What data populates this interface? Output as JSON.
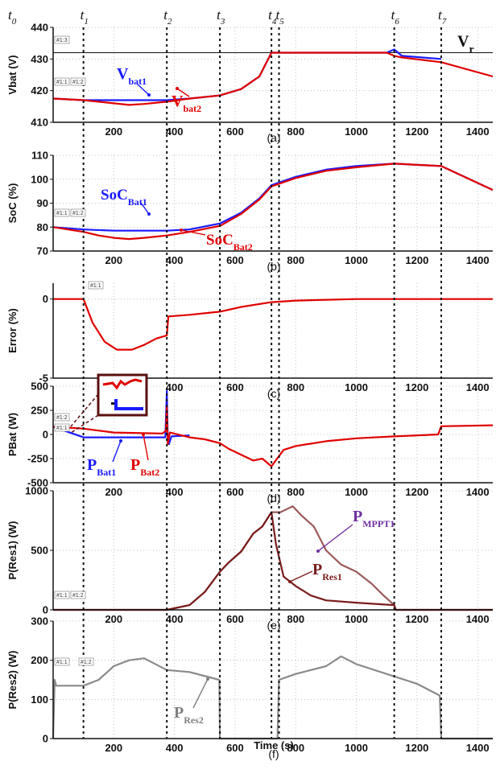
{
  "chart_data": {
    "type": "line",
    "x_axis": {
      "label": "Time (s)",
      "range": [
        0,
        1450
      ],
      "ticks": [
        200,
        400,
        600,
        800,
        1000,
        1200,
        1400
      ]
    },
    "time_instants": [
      {
        "name": "t",
        "sub": "0",
        "x": 0
      },
      {
        "name": "t",
        "sub": "1",
        "x": 100
      },
      {
        "name": "t",
        "sub": "2",
        "x": 375
      },
      {
        "name": "t",
        "sub": "3",
        "x": 550
      },
      {
        "name": "t",
        "sub": "4",
        "x": 720
      },
      {
        "name": "t",
        "sub": "5",
        "x": 745
      },
      {
        "name": "t",
        "sub": "6",
        "x": 1125
      },
      {
        "name": "t",
        "sub": "7",
        "x": 1280
      }
    ],
    "panels": [
      {
        "label": "(a)",
        "ylabel": "Vbat (V)",
        "ylim": [
          410,
          440
        ],
        "yticks": [
          410,
          420,
          430,
          440
        ],
        "markers": [
          "#1:3",
          "#1:1",
          "#1:2"
        ],
        "reference_line": {
          "name": "Vr",
          "value": 432
        },
        "annotations": [
          {
            "main": "V",
            "sub": "bat1",
            "color": "#1a1aff"
          },
          {
            "main": "V",
            "sub": "bat2",
            "color": "#e00000"
          }
        ],
        "series": [
          {
            "name": "Vbat1",
            "color": "#1a1aff",
            "x": [
              0,
              100,
              200,
              300,
              375,
              450,
              550,
              620,
              680,
              720,
              760,
              900,
              1100,
              1125,
              1150,
              1280
            ],
            "y": [
              417.5,
              417,
              417,
              417,
              417,
              417.5,
              418.5,
              420.5,
              424.5,
              432,
              432,
              432,
              432,
              433,
              431,
              430
            ]
          },
          {
            "name": "Vbat2",
            "color": "#e00000",
            "x": [
              0,
              100,
              200,
              250,
              300,
              375,
              450,
              550,
              620,
              680,
              720,
              760,
              900,
              1100,
              1125,
              1150,
              1280,
              1450
            ],
            "y": [
              417.5,
              417,
              416,
              415.5,
              415.8,
              416.5,
              417.5,
              418.5,
              420.5,
              424.5,
              432,
              432,
              432,
              432,
              431,
              430.5,
              429,
              424.5
            ]
          }
        ]
      },
      {
        "label": "(b)",
        "ylabel": "SoC (%)",
        "ylim": [
          70,
          110
        ],
        "yticks": [
          70,
          80,
          90,
          100,
          110
        ],
        "markers": [
          "#1:1",
          "#1:2"
        ],
        "annotations": [
          {
            "main": "SoC",
            "sub": "Bat1",
            "color": "#1a1aff"
          },
          {
            "main": "SoC",
            "sub": "Bat2",
            "color": "#e00000"
          }
        ],
        "series": [
          {
            "name": "SoCBat1",
            "color": "#1a1aff",
            "x": [
              0,
              100,
              200,
              375,
              450,
              550,
              620,
              680,
              720,
              800,
              900,
              1000,
              1125,
              1280,
              1450
            ],
            "y": [
              80,
              79,
              78.5,
              78.5,
              79,
              81.5,
              86,
              92,
              97.5,
              101,
              104,
              105.5,
              106.5,
              105.5,
              95.5
            ]
          },
          {
            "name": "SoCBat2",
            "color": "#e00000",
            "x": [
              0,
              100,
              150,
              200,
              250,
              300,
              375,
              400,
              450,
              550,
              620,
              680,
              720,
              800,
              900,
              1000,
              1125,
              1280,
              1450
            ],
            "y": [
              80,
              78,
              76.5,
              75.5,
              75,
              75.5,
              76.5,
              77,
              78,
              80.5,
              85.5,
              91.5,
              97,
              100.5,
              103.5,
              105,
              106.5,
              105.5,
              95.5
            ]
          }
        ]
      },
      {
        "label": "(c)",
        "ylabel": "Error (%)",
        "ylim": [
          -5,
          1
        ],
        "yticks": [
          -5,
          0
        ],
        "markers": [
          "#1:1"
        ],
        "series": [
          {
            "name": "Error",
            "color": "#e00000",
            "x": [
              0,
              100,
              130,
              170,
              210,
              260,
              300,
              340,
              375,
              380,
              450,
              550,
              620,
              720,
              800,
              1000,
              1200,
              1450
            ],
            "y": [
              0,
              0,
              -1.5,
              -2.7,
              -3.2,
              -3.2,
              -2.9,
              -2.5,
              -2.3,
              -1.1,
              -1,
              -0.8,
              -0.5,
              -0.2,
              -0.1,
              0,
              0,
              0
            ]
          }
        ]
      },
      {
        "label": "(d)",
        "ylabel": "PBat (W)",
        "ylim": [
          -500,
          500
        ],
        "yticks": [
          -500,
          -250,
          0,
          250,
          500
        ],
        "markers": [
          "#1:2",
          "#1:1"
        ],
        "annotations": [
          {
            "main": "P",
            "sub": "Bat1",
            "color": "#1a1aff"
          },
          {
            "main": "P",
            "sub": "Bat2",
            "color": "#e00000"
          }
        ],
        "series": [
          {
            "name": "PBat1",
            "color": "#1a1aff",
            "x": [
              0,
              100,
              200,
              370,
              375,
              378,
              382,
              390,
              450
            ],
            "y": [
              80,
              -30,
              -30,
              -30,
              450,
              -20,
              -100,
              -20,
              -10
            ]
          },
          {
            "name": "PBat2",
            "color": "#e00000",
            "x": [
              0,
              100,
              200,
              360,
              372,
              375,
              378,
              385,
              450,
              500,
              550,
              580,
              620,
              660,
              690,
              720,
              760,
              800,
              900,
              1000,
              1125,
              1270,
              1280,
              1450
            ],
            "y": [
              80,
              60,
              20,
              10,
              40,
              300,
              -100,
              20,
              -30,
              -50,
              -90,
              -150,
              -210,
              -270,
              -250,
              -330,
              -160,
              -120,
              -70,
              -40,
              -20,
              0,
              85,
              95
            ]
          }
        ]
      },
      {
        "label": "(e)",
        "ylabel": "P(Res1) (W)",
        "ylim": [
          0,
          1000
        ],
        "yticks": [
          0,
          500,
          1000
        ],
        "markers": [
          "#1:1",
          "#1:2"
        ],
        "annotations": [
          {
            "main": "P",
            "sub": "MPPT1",
            "color": "#7030a0"
          },
          {
            "main": "P",
            "sub": "Res1",
            "color": "#7a1c1c"
          }
        ],
        "series": [
          {
            "name": "PMPPT1",
            "color": "#9c5a5a",
            "x": [
              0,
              375,
              450,
              500,
              550,
              580,
              620,
              660,
              690,
              720,
              750,
              790,
              820,
              860,
              900,
              950,
              1000,
              1050,
              1090,
              1125,
              1130,
              1450
            ],
            "y": [
              0,
              0,
              40,
              150,
              320,
              400,
              490,
              640,
              700,
              820,
              820,
              870,
              790,
              700,
              500,
              380,
              320,
              220,
              120,
              40,
              0,
              0
            ]
          },
          {
            "name": "PRes1",
            "color": "#7a1c1c",
            "x": [
              0,
              375,
              450,
              500,
              550,
              580,
              620,
              660,
              690,
              720,
              735,
              760,
              800,
              850,
              900,
              1000,
              1125,
              1130,
              1450
            ],
            "y": [
              0,
              0,
              40,
              150,
              320,
              400,
              490,
              640,
              700,
              820,
              550,
              280,
              200,
              120,
              80,
              60,
              40,
              0,
              0
            ]
          }
        ]
      },
      {
        "label": "(f)",
        "ylabel": "P(Res2) (W)",
        "ylim": [
          0,
          300
        ],
        "yticks": [
          0,
          100,
          200,
          300
        ],
        "markers": [
          "#1:1",
          "#1:2"
        ],
        "annotations": [
          {
            "main": "P",
            "sub": "Res2",
            "color": "#808080"
          }
        ],
        "series": [
          {
            "name": "PRes2",
            "color": "#8a8a8a",
            "x": [
              0,
              5,
              10,
              100,
              150,
              200,
              250,
              300,
              375,
              450,
              548,
              550,
              552,
              720,
              740,
              745,
              800,
              900,
              950,
              1000,
              1100,
              1200,
              1275,
              1280,
              1285,
              1450
            ],
            "y": [
              0,
              150,
              135,
              135,
              150,
              185,
              200,
              205,
              175,
              170,
              150,
              0,
              0,
              0,
              0,
              150,
              165,
              185,
              210,
              190,
              165,
              140,
              110,
              0,
              0,
              0
            ]
          }
        ]
      }
    ]
  }
}
